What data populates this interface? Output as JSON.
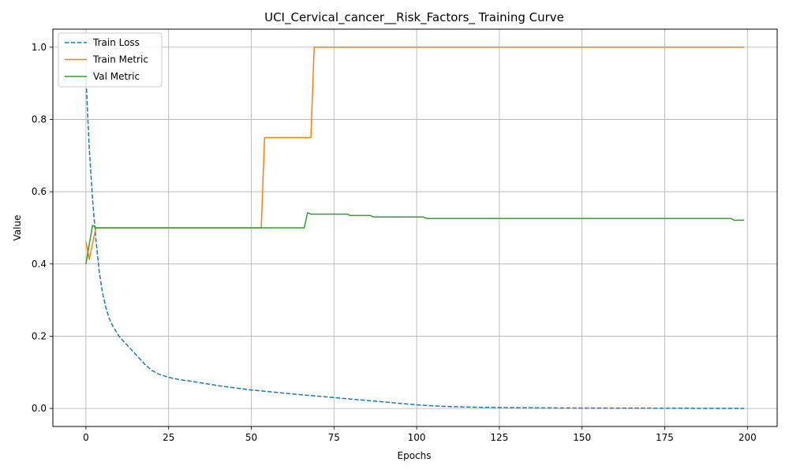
{
  "chart_data": {
    "type": "line",
    "title": "UCI_Cervical_cancer__Risk_Factors_ Training Curve",
    "xlabel": "Epochs",
    "ylabel": "Value",
    "xlim": [
      -10,
      209
    ],
    "ylim": [
      -0.05,
      1.05
    ],
    "xticks": [
      0,
      25,
      50,
      75,
      100,
      125,
      150,
      175,
      200
    ],
    "yticks": [
      0.0,
      0.2,
      0.4,
      0.6,
      0.8,
      1.0
    ],
    "xtick_labels": [
      "0",
      "25",
      "50",
      "75",
      "100",
      "125",
      "150",
      "175",
      "200"
    ],
    "ytick_labels": [
      "0.0",
      "0.2",
      "0.4",
      "0.6",
      "0.8",
      "1.0"
    ],
    "grid": true,
    "legend_position": "top-left",
    "series": [
      {
        "name": "Train Loss",
        "color": "#1f77b4",
        "style": "dashed",
        "x": [
          0,
          1,
          2,
          3,
          4,
          5,
          6,
          7,
          8,
          10,
          12,
          14,
          16,
          18,
          20,
          22,
          25,
          28,
          32,
          36,
          40,
          45,
          50,
          55,
          60,
          65,
          70,
          75,
          80,
          85,
          90,
          95,
          100,
          105,
          110,
          115,
          120,
          130,
          140,
          150,
          160,
          170,
          180,
          190,
          199
        ],
        "values": [
          0.92,
          0.72,
          0.58,
          0.47,
          0.38,
          0.32,
          0.28,
          0.25,
          0.23,
          0.2,
          0.18,
          0.16,
          0.14,
          0.12,
          0.105,
          0.095,
          0.086,
          0.08,
          0.075,
          0.069,
          0.063,
          0.057,
          0.051,
          0.047,
          0.042,
          0.038,
          0.034,
          0.03,
          0.026,
          0.022,
          0.018,
          0.014,
          0.01,
          0.007,
          0.005,
          0.004,
          0.003,
          0.002,
          0.0015,
          0.001,
          0.0008,
          0.0006,
          0.0005,
          0.0003,
          0.0002
        ]
      },
      {
        "name": "Train Metric",
        "color": "#ff7f0e",
        "style": "solid",
        "x": [
          0,
          1,
          3,
          53,
          54,
          68,
          69,
          199
        ],
        "values": [
          0.462,
          0.413,
          0.5,
          0.5,
          0.75,
          0.75,
          1.0,
          1.0
        ]
      },
      {
        "name": "Val Metric",
        "color": "#2ca02c",
        "style": "solid",
        "x": [
          0,
          2,
          3,
          66,
          67,
          68,
          79,
          80,
          86,
          87,
          102,
          103,
          195,
          196,
          199
        ],
        "values": [
          0.4,
          0.507,
          0.5,
          0.5,
          0.542,
          0.538,
          0.538,
          0.534,
          0.534,
          0.53,
          0.53,
          0.526,
          0.526,
          0.521,
          0.521
        ]
      }
    ]
  }
}
